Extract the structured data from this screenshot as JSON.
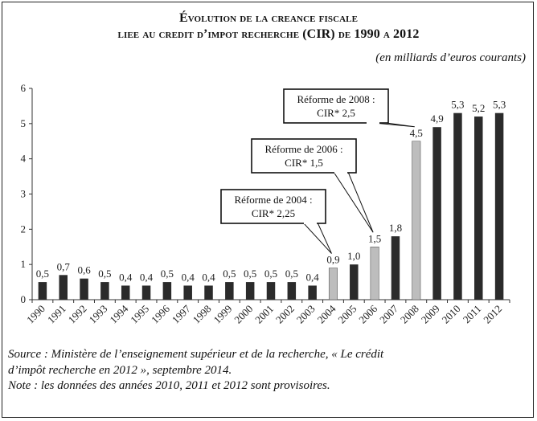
{
  "header": {
    "title_line1": "Évolution de la creance fiscale",
    "title_line2": "liee au credit d’impot recherche (CIR) de 1990 a 2012",
    "unit_note": "(en milliards d’euros courants)"
  },
  "chart_data": {
    "type": "bar",
    "categories": [
      "1990",
      "1991",
      "1992",
      "1993",
      "1994",
      "1995",
      "1996",
      "1997",
      "1998",
      "1999",
      "2000",
      "2001",
      "2002",
      "2003",
      "2004",
      "2005",
      "2006",
      "2007",
      "2008",
      "2009",
      "2010",
      "2011",
      "2012"
    ],
    "values": [
      0.5,
      0.7,
      0.6,
      0.5,
      0.4,
      0.4,
      0.5,
      0.4,
      0.4,
      0.5,
      0.5,
      0.5,
      0.5,
      0.4,
      0.9,
      1.0,
      1.5,
      1.8,
      4.5,
      4.9,
      5.3,
      5.2,
      5.3
    ],
    "value_labels": [
      "0,5",
      "0,7",
      "0,6",
      "0,5",
      "0,4",
      "0,4",
      "0,5",
      "0,4",
      "0,4",
      "0,5",
      "0,5",
      "0,5",
      "0,5",
      "0,4",
      "0,9",
      "1,0",
      "1,5",
      "1,8",
      "4,5",
      "4,9",
      "5,3",
      "5,2",
      "5,3"
    ],
    "highlighted_years": [
      "2004",
      "2006",
      "2008"
    ],
    "y_ticks": [
      "0",
      "1",
      "2",
      "3",
      "4",
      "5",
      "6"
    ],
    "ylim": [
      0,
      6
    ],
    "grid": false,
    "colors": {
      "bar": "#2b2b2b",
      "bar_highlight": "#bdbdbd"
    },
    "annotations": [
      {
        "target": "2004",
        "line1": "Réforme de 2004 :",
        "line2": "CIR* 2,25"
      },
      {
        "target": "2006",
        "line1": "Réforme de 2006 :",
        "line2": "CIR* 1,5"
      },
      {
        "target": "2008",
        "line1": "Réforme de 2008 :",
        "line2": "CIR* 2,5"
      }
    ]
  },
  "footer": {
    "source_line1": "Source : Ministère de l’enseignement supérieur et de la recherche, « Le crédit",
    "source_line2": "d’impôt recherche en 2012 », septembre 2014.",
    "note_line": "Note : les données des années 2010, 2011 et 2012 sont provisoires."
  }
}
